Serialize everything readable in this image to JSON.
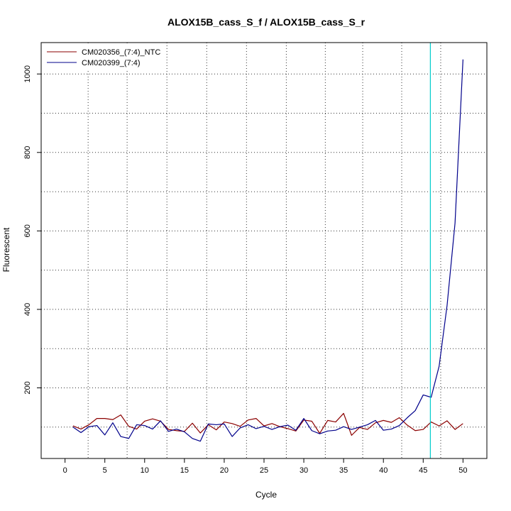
{
  "chart_data": {
    "type": "line",
    "title": "ALOX15B_cass_S_f / ALOX15B_cass_S_r",
    "xlabel": "Cycle",
    "ylabel": "Fluorescent",
    "xlim": [
      -3,
      53
    ],
    "ylim": [
      20,
      1080
    ],
    "x_ticks": [
      0,
      5,
      10,
      15,
      20,
      25,
      30,
      35,
      40,
      45,
      50
    ],
    "y_ticks": [
      200,
      400,
      600,
      800,
      1000
    ],
    "grid": true,
    "grid_x": [
      2.9,
      7.8,
      12.8,
      17.8,
      22.8,
      27.8,
      32.7,
      37.4,
      42.3,
      47.2
    ],
    "grid_y": [
      100,
      200,
      300,
      400,
      500,
      600,
      700,
      800,
      900,
      1000
    ],
    "threshold_cycle": 45.9,
    "threshold_color": "#00cccc",
    "legend_position": "top-left",
    "series": [
      {
        "name": "CM020356_(7:4)_NTC",
        "color": "#8b0000",
        "x": [
          1,
          2,
          3,
          4,
          5,
          6,
          7,
          8,
          9,
          10,
          11,
          12,
          13,
          14,
          15,
          16,
          17,
          18,
          19,
          20,
          21,
          22,
          23,
          24,
          25,
          26,
          27,
          28,
          29,
          30,
          31,
          32,
          33,
          34,
          35,
          36,
          37,
          38,
          39,
          40,
          41,
          42,
          43,
          44,
          45,
          46,
          47,
          48,
          49,
          50
        ],
        "values": [
          103,
          95,
          106,
          122,
          122,
          119,
          131,
          102,
          95,
          115,
          121,
          115,
          94,
          91,
          89,
          110,
          85,
          106,
          93,
          113,
          109,
          102,
          118,
          122,
          103,
          109,
          101,
          96,
          90,
          118,
          115,
          84,
          117,
          113,
          135,
          79,
          99,
          94,
          111,
          117,
          112,
          124,
          105,
          91,
          94,
          113,
          103,
          116,
          94,
          109
        ]
      },
      {
        "name": "CM020399_(7:4)",
        "color": "#00008b",
        "x": [
          1,
          2,
          3,
          4,
          5,
          6,
          7,
          8,
          9,
          10,
          11,
          12,
          13,
          14,
          15,
          16,
          17,
          18,
          19,
          20,
          21,
          22,
          23,
          24,
          25,
          26,
          27,
          28,
          29,
          30,
          31,
          32,
          33,
          34,
          35,
          36,
          37,
          38,
          39,
          40,
          41,
          42,
          43,
          44,
          45,
          46,
          47,
          48,
          49,
          50
        ],
        "values": [
          100,
          86,
          101,
          104,
          80,
          111,
          76,
          71,
          106,
          104,
          95,
          116,
          89,
          95,
          88,
          71,
          64,
          108,
          106,
          108,
          76,
          98,
          106,
          96,
          102,
          94,
          101,
          105,
          92,
          122,
          91,
          83,
          90,
          92,
          101,
          94,
          100,
          106,
          117,
          92,
          95,
          104,
          124,
          142,
          182,
          176,
          255,
          410,
          620,
          1037
        ]
      }
    ]
  }
}
